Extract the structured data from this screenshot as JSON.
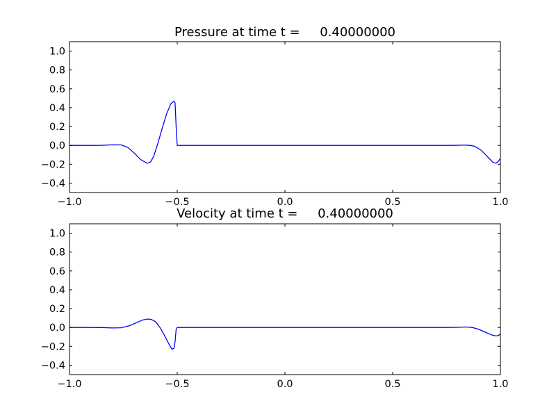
{
  "chart_data": [
    {
      "type": "line",
      "title": "Pressure at time t =     0.40000000",
      "xlabel": "",
      "ylabel": "",
      "xlim": [
        -1.0,
        1.0
      ],
      "ylim": [
        -0.5,
        1.1
      ],
      "grid": false,
      "x_ticks": [
        -1.0,
        -0.5,
        0.0,
        0.5,
        1.0
      ],
      "x_tick_labels": [
        "−1.0",
        "−0.5",
        "0.0",
        "0.5",
        "1.0"
      ],
      "y_ticks": [
        -0.4,
        -0.2,
        0.0,
        0.2,
        0.4,
        0.6,
        0.8,
        1.0
      ],
      "y_tick_labels": [
        "−0.4",
        "−0.2",
        "0.0",
        "0.2",
        "0.4",
        "0.6",
        "0.8",
        "1.0"
      ],
      "series": [
        {
          "color": "#0000ff",
          "x": [
            -1.0,
            -0.9,
            -0.85,
            -0.8,
            -0.76,
            -0.73,
            -0.7,
            -0.67,
            -0.64,
            -0.625,
            -0.61,
            -0.59,
            -0.57,
            -0.55,
            -0.53,
            -0.515,
            -0.51,
            -0.505,
            -0.5,
            -0.49,
            -0.45,
            -0.2,
            0.0,
            0.5,
            0.75,
            0.8,
            0.83,
            0.86,
            0.88,
            0.91,
            0.94,
            0.965,
            0.98,
            0.99,
            1.0
          ],
          "y": [
            0.0,
            0.0,
            0.001,
            0.006,
            0.005,
            -0.02,
            -0.08,
            -0.15,
            -0.19,
            -0.18,
            -0.12,
            0.02,
            0.18,
            0.33,
            0.44,
            0.47,
            0.45,
            0.2,
            0.0,
            0.0,
            0.0,
            0.0,
            0.0,
            0.0,
            0.0,
            0.001,
            0.003,
            0.0,
            -0.01,
            -0.05,
            -0.12,
            -0.18,
            -0.19,
            -0.17,
            -0.14
          ]
        }
      ]
    },
    {
      "type": "line",
      "title": "Velocity at time t =     0.40000000",
      "xlabel": "",
      "ylabel": "",
      "xlim": [
        -1.0,
        1.0
      ],
      "ylim": [
        -0.5,
        1.1
      ],
      "grid": false,
      "x_ticks": [
        -1.0,
        -0.5,
        0.0,
        0.5,
        1.0
      ],
      "x_tick_labels": [
        "−1.0",
        "−0.5",
        "0.0",
        "0.5",
        "1.0"
      ],
      "y_ticks": [
        -0.4,
        -0.2,
        0.0,
        0.2,
        0.4,
        0.6,
        0.8,
        1.0
      ],
      "y_tick_labels": [
        "−0.4",
        "−0.2",
        "0.0",
        "0.2",
        "0.4",
        "0.6",
        "0.8",
        "1.0"
      ],
      "series": [
        {
          "color": "#0000ff",
          "x": [
            -1.0,
            -0.9,
            -0.85,
            -0.8,
            -0.76,
            -0.72,
            -0.69,
            -0.66,
            -0.635,
            -0.62,
            -0.6,
            -0.58,
            -0.56,
            -0.54,
            -0.525,
            -0.515,
            -0.51,
            -0.505,
            -0.5,
            -0.49,
            -0.45,
            0.0,
            0.5,
            0.75,
            0.8,
            0.84,
            0.87,
            0.9,
            0.93,
            0.96,
            0.98,
            0.99,
            1.0
          ],
          "y": [
            0.0,
            0.0,
            -0.001,
            -0.005,
            -0.003,
            0.02,
            0.05,
            0.08,
            0.09,
            0.085,
            0.06,
            0.0,
            -0.08,
            -0.17,
            -0.23,
            -0.22,
            -0.15,
            -0.02,
            0.0,
            0.0,
            0.0,
            0.0,
            0.0,
            0.0,
            0.002,
            0.005,
            0.0,
            -0.02,
            -0.05,
            -0.08,
            -0.09,
            -0.085,
            -0.07
          ]
        }
      ]
    }
  ]
}
